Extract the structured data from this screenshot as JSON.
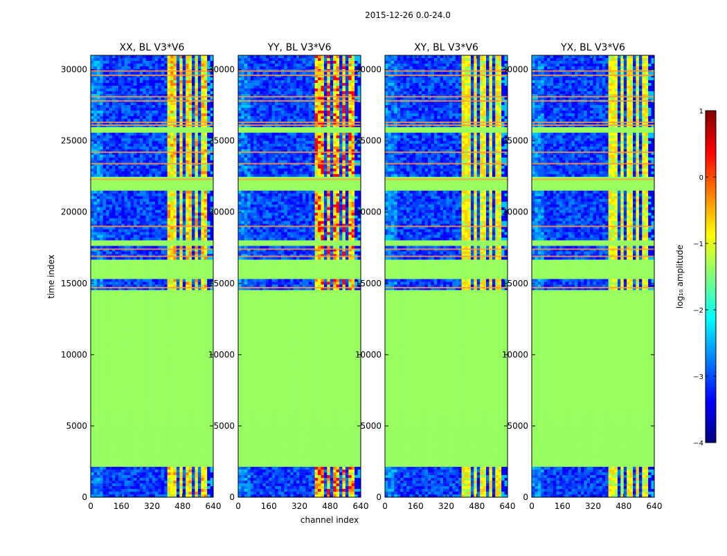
{
  "suptitle": "2015-12-26 0.0-24.0",
  "chart_data": {
    "type": "heatmap",
    "xlabel": "channel index",
    "ylabel": "time index",
    "xlim": [
      0,
      640
    ],
    "ylim": [
      0,
      31000
    ],
    "xticks": [
      0,
      160,
      320,
      480,
      640
    ],
    "yticks": [
      0,
      5000,
      10000,
      15000,
      20000,
      25000,
      30000
    ],
    "panels": [
      {
        "title": "XX, BL V3*V6",
        "hot_strength": 0.65
      },
      {
        "title": "YY, BL V3*V6",
        "hot_strength": 0.95
      },
      {
        "title": "XY, BL V3*V6",
        "hot_strength": 0.55
      },
      {
        "title": "YX, BL V3*V6",
        "hot_strength": 0.45
      }
    ],
    "masked_time_ranges": [
      [
        2200,
        14600
      ],
      [
        15300,
        16700
      ],
      [
        21500,
        22400
      ],
      [
        25600,
        26000
      ],
      [
        17600,
        18000
      ]
    ],
    "flag_lines_time": [
      26100,
      26300,
      27800,
      28100,
      29600,
      29900,
      24200,
      23400,
      22300,
      19000,
      17400,
      16900,
      14700
    ],
    "rfi_channel_bands": [
      [
        408,
        440
      ],
      [
        460,
        475
      ],
      [
        500,
        520
      ],
      [
        540,
        560
      ],
      [
        580,
        600
      ]
    ],
    "colorbar": {
      "label": "log₁₀ amplitude",
      "range": [
        -4,
        1
      ],
      "ticks": [
        1,
        0,
        -1,
        -2,
        -3,
        -4
      ],
      "tick_labels": [
        "1",
        "0",
        "−1",
        "−2",
        "−3",
        "−4"
      ],
      "colormap": "jet",
      "stops": [
        "#00007f",
        "#0000ff",
        "#007fff",
        "#00ffff",
        "#7fff7f",
        "#ffff00",
        "#ff7f00",
        "#ff0000",
        "#7f0000"
      ]
    }
  }
}
